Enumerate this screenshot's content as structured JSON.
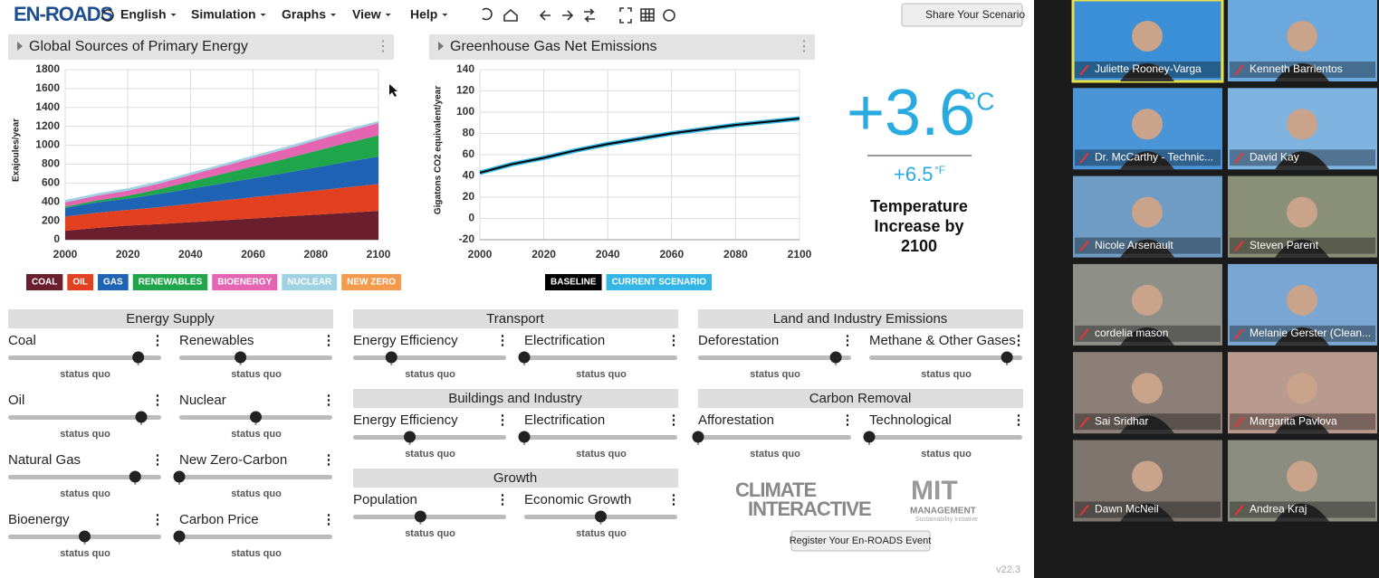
{
  "app": {
    "logo": "EN-ROADS",
    "menu": [
      "English",
      "Simulation",
      "Graphs",
      "View",
      "Help"
    ],
    "share_button": "Share Your Scenario",
    "register_button": "Register Your En-ROADS Event",
    "version": "v22.3",
    "climate_interactive": [
      "CLIMATE",
      "INTERACTIVE"
    ],
    "mit": [
      "MIT",
      "MANAGEMENT",
      "Sustainability Initiative"
    ]
  },
  "chart_data": [
    {
      "type": "area",
      "stacked": true,
      "title": "Global Sources of Primary Energy",
      "y_label": "Exajoules/year",
      "x": [
        2000,
        2010,
        2020,
        2030,
        2040,
        2050,
        2060,
        2070,
        2080,
        2090,
        2100
      ],
      "xlim": [
        2000,
        2100
      ],
      "xticks": [
        2000,
        2020,
        2040,
        2060,
        2080,
        2100
      ],
      "ylim": [
        0,
        1800
      ],
      "yticks": [
        0,
        200,
        400,
        600,
        800,
        1000,
        1200,
        1400,
        1600,
        1800
      ],
      "grid": true,
      "series": [
        {
          "name": "COAL",
          "color": "#6b1f2e",
          "values": [
            95,
            125,
            150,
            165,
            185,
            205,
            225,
            245,
            265,
            285,
            305
          ]
        },
        {
          "name": "OIL",
          "color": "#e2401f",
          "values": [
            150,
            160,
            165,
            180,
            195,
            210,
            225,
            240,
            255,
            270,
            285
          ]
        },
        {
          "name": "GAS",
          "color": "#1f63b5",
          "values": [
            90,
            110,
            120,
            140,
            160,
            180,
            200,
            220,
            245,
            270,
            290
          ]
        },
        {
          "name": "RENEWABLES",
          "color": "#1fa64a",
          "values": [
            15,
            20,
            30,
            50,
            75,
            100,
            125,
            150,
            175,
            200,
            225
          ]
        },
        {
          "name": "BIOENERGY",
          "color": "#e466b3",
          "values": [
            45,
            50,
            55,
            60,
            70,
            80,
            90,
            100,
            110,
            120,
            130
          ]
        },
        {
          "name": "NUCLEAR",
          "color": "#9fd3e3",
          "values": [
            25,
            25,
            25,
            25,
            25,
            25,
            25,
            25,
            25,
            25,
            20
          ]
        },
        {
          "name": "NEW ZERO",
          "color": "#f49a4c",
          "values": [
            0,
            0,
            0,
            0,
            0,
            0,
            0,
            0,
            0,
            0,
            0
          ]
        }
      ]
    },
    {
      "type": "line",
      "title": "Greenhouse Gas Net Emissions",
      "y_label": "Gigatons CO2 equivalent/year",
      "x": [
        2000,
        2010,
        2020,
        2030,
        2040,
        2050,
        2060,
        2070,
        2080,
        2090,
        2100
      ],
      "xlim": [
        2000,
        2100
      ],
      "xticks": [
        2000,
        2020,
        2040,
        2060,
        2080,
        2100
      ],
      "ylim": [
        -20,
        140
      ],
      "yticks": [
        -20,
        0,
        20,
        40,
        60,
        80,
        100,
        120,
        140
      ],
      "grid": true,
      "series": [
        {
          "name": "BASELINE",
          "color": "#000000",
          "values": [
            43,
            51,
            57,
            64,
            70,
            75,
            80,
            84,
            88,
            91,
            94
          ]
        },
        {
          "name": "CURRENT SCENARIO",
          "color": "#33b5e5",
          "values": [
            43,
            51,
            57,
            64,
            70,
            75,
            80,
            84,
            88,
            91,
            94
          ]
        }
      ]
    }
  ],
  "temperature": {
    "celsius": "+3.6",
    "celsius_unit": "°C",
    "fahrenheit": "+6.5",
    "fahrenheit_unit": "°F",
    "caption": "Temperature Increase by 2100"
  },
  "slider_groups": [
    {
      "title": "Energy Supply",
      "sliders": [
        {
          "label": "Coal",
          "status": "status quo",
          "position": 0.85
        },
        {
          "label": "Renewables",
          "status": "status quo",
          "position": 0.4
        },
        {
          "label": "Oil",
          "status": "status quo",
          "position": 0.87
        },
        {
          "label": "Nuclear",
          "status": "status quo",
          "position": 0.5
        },
        {
          "label": "Natural Gas",
          "status": "status quo",
          "position": 0.83
        },
        {
          "label": "New Zero-Carbon",
          "status": "status quo",
          "position": 0
        },
        {
          "label": "Bioenergy",
          "status": "status quo",
          "position": 0.5
        },
        {
          "label": "Carbon Price",
          "status": "status quo",
          "position": 0
        }
      ]
    },
    {
      "title": "Transport",
      "sliders": [
        {
          "label": "Energy Efficiency",
          "status": "status quo",
          "position": 0.25
        },
        {
          "label": "Electrification",
          "status": "status quo",
          "position": 0
        }
      ]
    },
    {
      "title": "Buildings and Industry",
      "sliders": [
        {
          "label": "Energy Efficiency",
          "status": "status quo",
          "position": 0.37
        },
        {
          "label": "Electrification",
          "status": "status quo",
          "position": 0
        }
      ]
    },
    {
      "title": "Growth",
      "sliders": [
        {
          "label": "Population",
          "status": "status quo",
          "position": 0.44
        },
        {
          "label": "Economic Growth",
          "status": "status quo",
          "position": 0.5
        }
      ]
    },
    {
      "title": "Land and Industry Emissions",
      "sliders": [
        {
          "label": "Deforestation",
          "status": "status quo",
          "position": 0.9
        },
        {
          "label": "Methane & Other Gases",
          "status": "status quo",
          "position": 0.9
        }
      ]
    },
    {
      "title": "Carbon Removal",
      "sliders": [
        {
          "label": "Afforestation",
          "status": "status quo",
          "position": 0
        },
        {
          "label": "Technological",
          "status": "status quo",
          "position": 0
        }
      ]
    }
  ],
  "participants": [
    "Juliette Rooney-Varga",
    "Kenneth Barrientos",
    "Dr. McCarthy - Technic...",
    "David Kay",
    "Nicole Arsenault",
    "Steven Parent",
    "cordelia mason",
    "Melanie Gerster (Clean...",
    "Sai Sridhar",
    "Margarita Pavlova",
    "Dawn McNeil",
    "Andrea Kraj"
  ]
}
